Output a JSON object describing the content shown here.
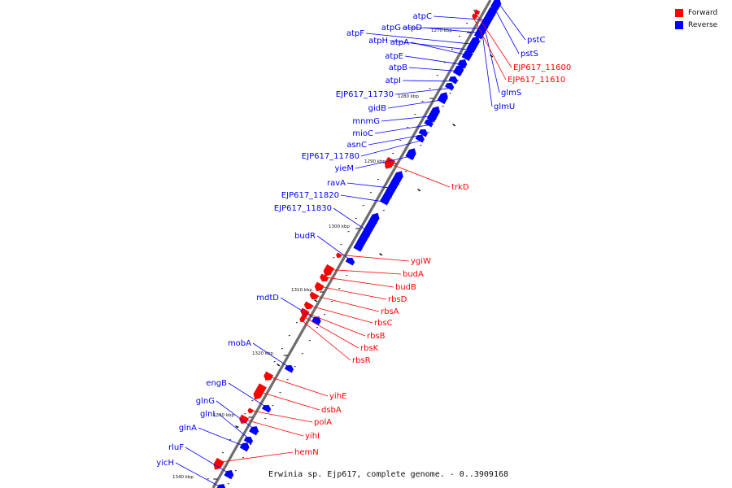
{
  "legend": {
    "forward_label": "Forward",
    "reverse_label": "Reverse",
    "forward_color": "#ff0000",
    "reverse_color": "#0000ff"
  },
  "caption": "Erwinia sp. Ejp617, complete genome. - 0..3909168",
  "ticks": [
    "1270 kbp",
    "1280 kbp",
    "1290 kbp",
    "1300 kbp",
    "1310 kbp",
    "1320 kbp",
    "1330 kbp",
    "1340 kbp"
  ],
  "genes": [
    {
      "name": "atpC",
      "strand": "reverse"
    },
    {
      "name": "atpG",
      "strand": "reverse"
    },
    {
      "name": "atpD",
      "strand": "reverse"
    },
    {
      "name": "atpF",
      "strand": "reverse"
    },
    {
      "name": "atpH",
      "strand": "reverse"
    },
    {
      "name": "atpA",
      "strand": "reverse"
    },
    {
      "name": "atpE",
      "strand": "reverse"
    },
    {
      "name": "atpB",
      "strand": "reverse"
    },
    {
      "name": "atpI",
      "strand": "reverse"
    },
    {
      "name": "EJP617_11730",
      "strand": "reverse"
    },
    {
      "name": "gidB",
      "strand": "reverse"
    },
    {
      "name": "mnmG",
      "strand": "reverse"
    },
    {
      "name": "mioC",
      "strand": "reverse"
    },
    {
      "name": "asnC",
      "strand": "reverse"
    },
    {
      "name": "EJP617_11780",
      "strand": "reverse"
    },
    {
      "name": "yieM",
      "strand": "reverse"
    },
    {
      "name": "ravA",
      "strand": "reverse"
    },
    {
      "name": "EJP617_11820",
      "strand": "reverse"
    },
    {
      "name": "EJP617_11830",
      "strand": "reverse"
    },
    {
      "name": "budR",
      "strand": "reverse"
    },
    {
      "name": "mdtD",
      "strand": "reverse"
    },
    {
      "name": "mobA",
      "strand": "reverse"
    },
    {
      "name": "engB",
      "strand": "reverse"
    },
    {
      "name": "glnG",
      "strand": "reverse"
    },
    {
      "name": "glnL",
      "strand": "reverse"
    },
    {
      "name": "glnA",
      "strand": "reverse"
    },
    {
      "name": "rluF",
      "strand": "reverse"
    },
    {
      "name": "yicH",
      "strand": "reverse"
    },
    {
      "name": "pstC",
      "strand": "reverse"
    },
    {
      "name": "pstS",
      "strand": "reverse"
    },
    {
      "name": "glmS",
      "strand": "reverse"
    },
    {
      "name": "glmU",
      "strand": "reverse"
    },
    {
      "name": "EJP617_11600",
      "strand": "forward"
    },
    {
      "name": "EJP617_11610",
      "strand": "forward"
    },
    {
      "name": "trkD",
      "strand": "forward"
    },
    {
      "name": "ygiW",
      "strand": "forward"
    },
    {
      "name": "budA",
      "strand": "forward"
    },
    {
      "name": "budB",
      "strand": "forward"
    },
    {
      "name": "rbsD",
      "strand": "forward"
    },
    {
      "name": "rbsA",
      "strand": "forward"
    },
    {
      "name": "rbsC",
      "strand": "forward"
    },
    {
      "name": "rbsB",
      "strand": "forward"
    },
    {
      "name": "rbsK",
      "strand": "forward"
    },
    {
      "name": "rbsR",
      "strand": "forward"
    },
    {
      "name": "yihE",
      "strand": "forward"
    },
    {
      "name": "dsbA",
      "strand": "forward"
    },
    {
      "name": "polA",
      "strand": "forward"
    },
    {
      "name": "yihI",
      "strand": "forward"
    },
    {
      "name": "hemN",
      "strand": "forward"
    }
  ]
}
